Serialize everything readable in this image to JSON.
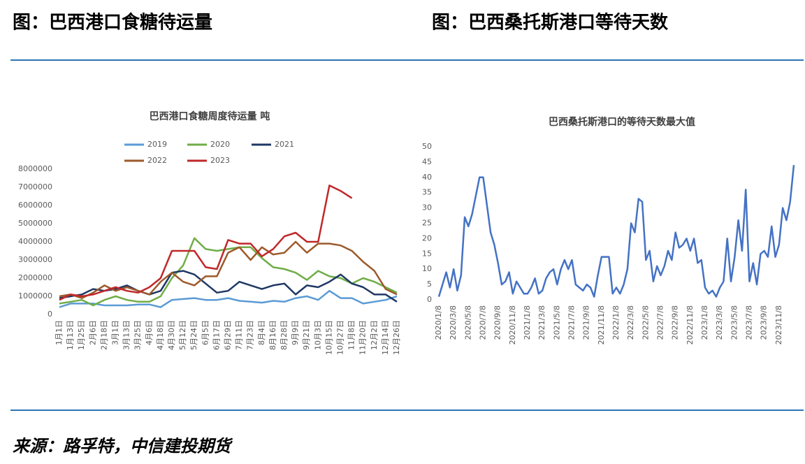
{
  "headings": [
    "图：巴西港口食糖待运量",
    "图：巴西桑托斯港口等待天数"
  ],
  "source": "来源：路孚特，中信建投期货",
  "chart_data": [
    {
      "type": "line",
      "title": "巴西港口食糖周度待运量  吨",
      "categories": [
        "1月1日",
        "1月13日",
        "1月25日",
        "2月6日",
        "2月18日",
        "3月1日",
        "3月13日",
        "3月25日",
        "4月6日",
        "4月18日",
        "4月30日",
        "5月12日",
        "5月24日",
        "6月5日",
        "6月17日",
        "6月29日",
        "7月11日",
        "7月23日",
        "8月4日",
        "8月16日",
        "8月28日",
        "9月9日",
        "9月21日",
        "10月3日",
        "10月15日",
        "10月27日",
        "11月8日",
        "11月20日",
        "12月2日",
        "12月14日",
        "12月26日"
      ],
      "series": [
        {
          "name": "2019",
          "color": "#5b9bd5",
          "values": [
            400000,
            600000,
            600000,
            600000,
            500000,
            500000,
            500000,
            550000,
            550000,
            400000,
            800000,
            850000,
            900000,
            800000,
            800000,
            900000,
            750000,
            700000,
            650000,
            750000,
            700000,
            900000,
            1000000,
            800000,
            1300000,
            900000,
            900000,
            600000,
            700000,
            800000,
            1000000
          ]
        },
        {
          "name": "2020",
          "color": "#70ad47",
          "values": [
            600000,
            700000,
            800000,
            500000,
            800000,
            1000000,
            800000,
            700000,
            700000,
            1000000,
            2000000,
            2700000,
            4200000,
            3600000,
            3500000,
            3600000,
            3700000,
            3700000,
            3100000,
            2600000,
            2500000,
            2300000,
            1900000,
            2400000,
            2100000,
            2000000,
            1700000,
            2000000,
            1800000,
            1500000,
            1200000
          ]
        },
        {
          "name": "2021",
          "color": "#1f3864",
          "values": [
            900000,
            1000000,
            1100000,
            1400000,
            1300000,
            1400000,
            1600000,
            1300000,
            1100000,
            1300000,
            2300000,
            2400000,
            2200000,
            1700000,
            1200000,
            1300000,
            1800000,
            1600000,
            1400000,
            1600000,
            1700000,
            1100000,
            1600000,
            1500000,
            1800000,
            2200000,
            1700000,
            1500000,
            1100000,
            1100000,
            700000
          ]
        },
        {
          "name": "2022",
          "color": "#9c5a2b",
          "values": [
            1000000,
            1100000,
            900000,
            1200000,
            1600000,
            1300000,
            1500000,
            1300000,
            1100000,
            1800000,
            2300000,
            1800000,
            1600000,
            2100000,
            2100000,
            3400000,
            3700000,
            3000000,
            3700000,
            3300000,
            3400000,
            4000000,
            3400000,
            3900000,
            3900000,
            3800000,
            3500000,
            2900000,
            2400000,
            1400000,
            1100000
          ]
        },
        {
          "name": "2023",
          "color": "#c0282a",
          "values": [
            800000,
            1100000,
            1000000,
            1100000,
            1300000,
            1500000,
            1300000,
            1200000,
            1500000,
            2000000,
            3500000,
            3500000,
            3500000,
            2600000,
            2500000,
            4100000,
            3900000,
            3900000,
            3200000,
            3600000,
            4300000,
            4500000,
            4000000,
            4000000,
            7100000,
            6800000,
            6400000,
            null,
            null,
            null,
            null
          ]
        }
      ],
      "ylim": [
        0,
        8000000
      ],
      "yticks": [
        0,
        1000000,
        2000000,
        3000000,
        4000000,
        5000000,
        6000000,
        7000000,
        8000000
      ],
      "grid": false
    },
    {
      "type": "line",
      "title": "巴西桑托斯港口的等待天数最大值",
      "categories": [
        "2020/1/8",
        null,
        null,
        null,
        "2020/3/8",
        null,
        null,
        null,
        "2020/5/8",
        null,
        null,
        null,
        "2020/7/8",
        null,
        null,
        null,
        "2020/9/8",
        null,
        null,
        null,
        "2020/11/8",
        null,
        null,
        null,
        "2021/1/8",
        null,
        null,
        null,
        "2021/3/8",
        null,
        null,
        null,
        "2021/5/8",
        null,
        null,
        null,
        "2021/7/8",
        null,
        null,
        null,
        "2021/9/8",
        null,
        null,
        null,
        "2021/11/8",
        null,
        null,
        null,
        "2022/1/8",
        null,
        null,
        null,
        "2022/3/8",
        null,
        null,
        null,
        "2022/5/8",
        null,
        null,
        null,
        "2022/7/8",
        null,
        null,
        null,
        "2022/9/8",
        null,
        null,
        null,
        "2022/11/8",
        null,
        null,
        null,
        "2023/1/8",
        null,
        null,
        null,
        "2023/3/8",
        null,
        null,
        null,
        "2023/5/8",
        null,
        null,
        null,
        "2023/7/8",
        null,
        null,
        null,
        "2023/9/8",
        null,
        null,
        null,
        "2023/11/8",
        null,
        null,
        null,
        null
      ],
      "series": [
        {
          "name": "等待天数",
          "color": "#4472c4",
          "values": [
            1,
            5,
            9,
            4,
            10,
            3,
            8,
            27,
            24,
            28,
            34,
            40,
            40,
            31,
            22,
            18,
            12,
            5,
            6,
            9,
            2,
            6,
            4,
            2,
            2,
            4,
            7,
            2,
            3,
            7,
            9,
            10,
            5,
            10,
            13,
            10,
            13,
            5,
            4,
            3,
            5,
            4,
            1,
            8,
            14,
            14,
            14,
            2,
            4,
            2,
            5,
            10,
            25,
            22,
            33,
            32,
            13,
            16,
            6,
            11,
            8,
            11,
            16,
            13,
            22,
            17,
            18,
            20,
            16,
            20,
            12,
            13,
            4,
            2,
            3,
            1,
            4,
            6,
            20,
            6,
            14,
            26,
            16,
            36,
            6,
            12,
            5,
            15,
            16,
            14,
            24,
            14,
            18,
            30,
            26,
            32,
            44
          ]
        }
      ],
      "ylim": [
        0,
        50
      ],
      "yticks": [
        0,
        5,
        10,
        15,
        20,
        25,
        30,
        35,
        40,
        45,
        50
      ],
      "grid": false
    }
  ]
}
